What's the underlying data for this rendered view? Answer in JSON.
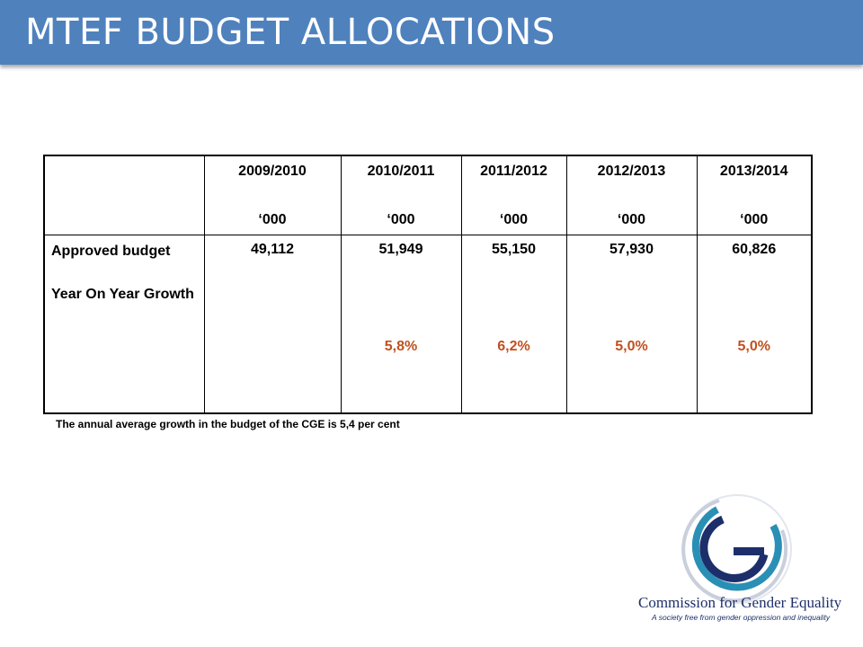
{
  "slide": {
    "title": "MTEF BUDGET ALLOCATIONS"
  },
  "table": {
    "columns": [
      {
        "year": "2009/2010",
        "unit": "‘000"
      },
      {
        "year": "2010/2011",
        "unit": "‘000"
      },
      {
        "year": "2011/2012",
        "unit": "‘000"
      },
      {
        "year": "2012/2013",
        "unit": "‘000"
      },
      {
        "year": "2013/2014",
        "unit": "‘000"
      }
    ],
    "row_label_1": "Approved budget",
    "row_label_2": "Year On Year Growth",
    "approved_budget": [
      "49,112",
      "51,949",
      "55,150",
      "57,930",
      "60,826"
    ],
    "growth": [
      "",
      "5,8%",
      "6,2%",
      "5,0%",
      "5,0%"
    ]
  },
  "footnote": "The annual average growth in the budget of the CGE is 5,4 per cent",
  "logo": {
    "org_name": "Commission for Gender Equality",
    "tagline": "A society free from gender oppression and inequality"
  },
  "colors": {
    "title_bar": "#4f81bd",
    "growth_text": "#c0501f",
    "logo_navy": "#1d2f6a",
    "logo_teal": "#2a8fb5"
  }
}
